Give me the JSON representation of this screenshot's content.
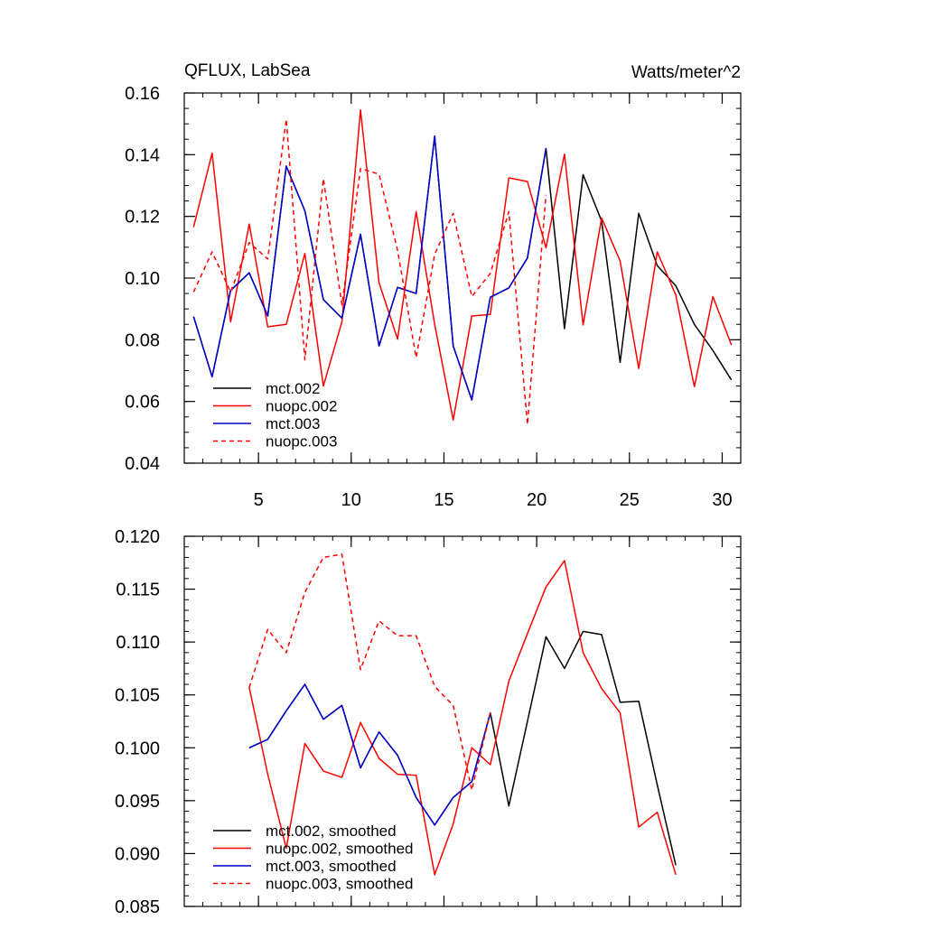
{
  "chart_data": [
    {
      "type": "line",
      "title_left": "QFLUX, LabSea",
      "title_right": "Watts/meter^2",
      "xlim": [
        1,
        31
      ],
      "ylim": [
        0.04,
        0.16
      ],
      "xticks": [
        5,
        10,
        15,
        20,
        25,
        30
      ],
      "xtick_labels": [
        "5",
        "10",
        "15",
        "20",
        "25",
        "30"
      ],
      "xminor_step": 1,
      "yticks": [
        0.04,
        0.06,
        0.08,
        0.1,
        0.12,
        0.14,
        0.16
      ],
      "ytick_labels": [
        "0.04",
        "0.06",
        "0.08",
        "0.10",
        "0.12",
        "0.14",
        "0.16"
      ],
      "yminor_step": 0.005,
      "legend_position": "bottom-left",
      "series": [
        {
          "name": "mct.002",
          "color": "#000000",
          "dash": "solid",
          "x": [
            1.5,
            2.5,
            3.5,
            4.5,
            5.5,
            6.5,
            7.5,
            8.5,
            9.5,
            10.5,
            11.5,
            12.5,
            13.5,
            14.5,
            15.5,
            16.5,
            17.5,
            18.5,
            19.5,
            20.5,
            21.5,
            22.5,
            23.5,
            24.5,
            25.5,
            26.5,
            27.5,
            28.5,
            29.5,
            30.5
          ],
          "values": [
            0.0875,
            0.068,
            0.096,
            0.1017,
            0.0877,
            0.1363,
            0.1218,
            0.093,
            0.087,
            0.1142,
            0.078,
            0.097,
            0.095,
            0.146,
            0.078,
            0.0605,
            0.0938,
            0.0968,
            0.1065,
            0.142,
            0.0836,
            0.1335,
            0.1185,
            0.0727,
            0.121,
            0.104,
            0.0975,
            0.085,
            0.0765,
            0.067
          ]
        },
        {
          "name": "nuopc.002",
          "color": "#ff0000",
          "dash": "solid",
          "x": [
            1.5,
            2.5,
            3.5,
            4.5,
            5.5,
            6.5,
            7.5,
            8.5,
            9.5,
            10.5,
            11.5,
            12.5,
            13.5,
            14.5,
            15.5,
            16.5,
            17.5,
            18.5,
            19.5,
            20.5,
            21.5,
            22.5,
            23.5,
            24.5,
            25.5,
            26.5,
            27.5,
            28.5,
            29.5,
            30.5
          ],
          "values": [
            0.1165,
            0.1405,
            0.0858,
            0.1175,
            0.0842,
            0.085,
            0.108,
            0.065,
            0.0858,
            0.1545,
            0.0985,
            0.0802,
            0.1215,
            0.085,
            0.054,
            0.0877,
            0.0882,
            0.1325,
            0.1313,
            0.1098,
            0.1402,
            0.0848,
            0.1195,
            0.1055,
            0.0707,
            0.1085,
            0.0945,
            0.0648,
            0.094,
            0.0783
          ]
        },
        {
          "name": "mct.003",
          "color": "#0000cc",
          "dash": "solid",
          "x": [
            1.5,
            2.5,
            3.5,
            4.5,
            5.5,
            6.5,
            7.5,
            8.5,
            9.5,
            10.5,
            11.5,
            12.5,
            13.5,
            14.5,
            15.5,
            16.5,
            17.5,
            18.5,
            19.5,
            20.5
          ],
          "values": [
            0.0875,
            0.068,
            0.096,
            0.1017,
            0.0877,
            0.1363,
            0.1218,
            0.093,
            0.087,
            0.1142,
            0.078,
            0.097,
            0.095,
            0.146,
            0.078,
            0.0605,
            0.0938,
            0.0968,
            0.1065,
            0.142
          ]
        },
        {
          "name": "nuopc.003",
          "color": "#ff0000",
          "dash": "dashed",
          "x": [
            1.5,
            2.5,
            3.5,
            4.5,
            5.5,
            6.5,
            7.5,
            8.5,
            9.5,
            10.5,
            11.5,
            12.5,
            13.5,
            14.5,
            15.5,
            16.5,
            17.5,
            18.5,
            19.5,
            20.5
          ],
          "values": [
            0.0955,
            0.1085,
            0.0955,
            0.1115,
            0.1062,
            0.1515,
            0.0735,
            0.1322,
            0.0913,
            0.1355,
            0.1337,
            0.109,
            0.0742,
            0.1077,
            0.121,
            0.094,
            0.1015,
            0.1215,
            0.0525,
            0.127
          ]
        }
      ]
    },
    {
      "type": "line",
      "xlim": [
        1,
        31
      ],
      "ylim": [
        0.085,
        0.12
      ],
      "xticks": [
        5,
        10,
        15,
        20,
        25,
        30
      ],
      "xtick_labels": [
        "",
        "",
        "",
        "",
        "",
        ""
      ],
      "xminor_step": 1,
      "yticks": [
        0.085,
        0.09,
        0.095,
        0.1,
        0.105,
        0.11,
        0.115,
        0.12
      ],
      "ytick_labels": [
        "0.085",
        "0.090",
        "0.095",
        "0.100",
        "0.105",
        "0.110",
        "0.115",
        "0.120"
      ],
      "yminor_step": 0.001,
      "legend_position": "bottom-left",
      "series": [
        {
          "name": "mct.002, smoothed",
          "color": "#000000",
          "dash": "solid",
          "x": [
            4.5,
            5.5,
            6.5,
            7.5,
            8.5,
            9.5,
            10.5,
            11.5,
            12.5,
            13.5,
            14.5,
            15.5,
            16.5,
            17.5,
            18.5,
            19.5,
            20.5,
            21.5,
            22.5,
            23.5,
            24.5,
            25.5,
            26.5,
            27.5
          ],
          "values": [
            0.1,
            0.1008,
            0.1035,
            0.106,
            0.1027,
            0.104,
            0.0981,
            0.1015,
            0.0993,
            0.0953,
            0.0927,
            0.0953,
            0.0968,
            0.1033,
            0.0945,
            0.1025,
            0.1105,
            0.1075,
            0.111,
            0.1107,
            0.1043,
            0.1044,
            0.0965,
            0.0889
          ]
        },
        {
          "name": "nuopc.002, smoothed",
          "color": "#ff0000",
          "dash": "solid",
          "x": [
            4.5,
            5.5,
            6.5,
            7.5,
            8.5,
            9.5,
            10.5,
            11.5,
            12.5,
            13.5,
            14.5,
            15.5,
            16.5,
            17.5,
            18.5,
            19.5,
            20.5,
            21.5,
            22.5,
            23.5,
            24.5,
            25.5,
            26.5,
            27.5
          ],
          "values": [
            0.1057,
            0.0975,
            0.0905,
            0.1004,
            0.0978,
            0.0972,
            0.1024,
            0.099,
            0.0975,
            0.0974,
            0.088,
            0.0928,
            0.1,
            0.0984,
            0.1063,
            0.1108,
            0.1152,
            0.1177,
            0.109,
            0.1056,
            0.1033,
            0.0925,
            0.0939,
            0.088
          ]
        },
        {
          "name": "mct.003, smoothed",
          "color": "#0000cc",
          "dash": "solid",
          "x": [
            4.5,
            5.5,
            6.5,
            7.5,
            8.5,
            9.5,
            10.5,
            11.5,
            12.5,
            13.5,
            14.5,
            15.5,
            16.5,
            17.5
          ],
          "values": [
            0.1,
            0.1008,
            0.1035,
            0.106,
            0.1027,
            0.104,
            0.0981,
            0.1015,
            0.0993,
            0.0953,
            0.0927,
            0.0953,
            0.0968,
            0.1033
          ]
        },
        {
          "name": "nuopc.003, smoothed",
          "color": "#ff0000",
          "dash": "dashed",
          "x": [
            4.5,
            5.5,
            6.5,
            7.5,
            8.5,
            9.5,
            10.5,
            11.5,
            12.5,
            13.5,
            14.5,
            15.5,
            16.5,
            17.5
          ],
          "values": [
            0.1057,
            0.1112,
            0.109,
            0.1147,
            0.118,
            0.1183,
            0.1074,
            0.112,
            0.1106,
            0.1106,
            0.1058,
            0.104,
            0.096,
            0.1033
          ]
        }
      ]
    }
  ]
}
